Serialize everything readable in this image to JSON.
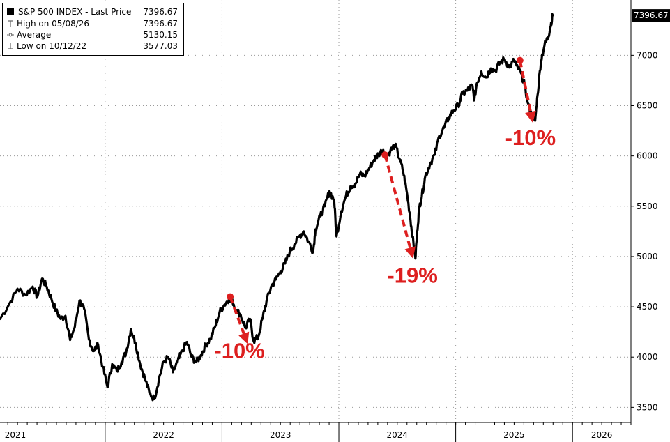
{
  "legend": {
    "title": "S&P 500 INDEX - Last Price",
    "title_value": "7396.67",
    "rows": [
      {
        "label": "High on 05/08/26",
        "value": "7396.67",
        "icon": "high-marker-icon"
      },
      {
        "label": "Average",
        "value": "5130.15",
        "icon": "average-marker-icon"
      },
      {
        "label": "Low on 10/12/22",
        "value": "3577.03",
        "icon": "low-marker-icon"
      }
    ]
  },
  "chart_data": {
    "type": "line",
    "title": "",
    "xlabel": "",
    "ylabel": "",
    "x_ticks": [
      "2021",
      "2022",
      "2023",
      "2024",
      "2025",
      "2026"
    ],
    "y_ticks": [
      3500,
      4000,
      4500,
      5000,
      5500,
      6000,
      6500,
      7000
    ],
    "ylim": [
      3350,
      7550
    ],
    "xlim": [
      2021.1,
      2026.5
    ],
    "grid": "dotted",
    "last_price_label": "7396.67",
    "line_color": "#000000",
    "annotation_color": "#dd1f1f",
    "series": [
      {
        "name": "S&P 500 INDEX - Last Price",
        "points": [
          [
            2021.1,
            4380
          ],
          [
            2021.18,
            4530
          ],
          [
            2021.25,
            4680
          ],
          [
            2021.32,
            4620
          ],
          [
            2021.38,
            4700
          ],
          [
            2021.42,
            4600
          ],
          [
            2021.46,
            4780
          ],
          [
            2021.5,
            4700
          ],
          [
            2021.54,
            4580
          ],
          [
            2021.58,
            4460
          ],
          [
            2021.62,
            4380
          ],
          [
            2021.66,
            4410
          ],
          [
            2021.7,
            4170
          ],
          [
            2021.74,
            4300
          ],
          [
            2021.78,
            4560
          ],
          [
            2021.82,
            4480
          ],
          [
            2021.86,
            4180
          ],
          [
            2021.9,
            4060
          ],
          [
            2021.94,
            4120
          ],
          [
            2021.98,
            3900
          ],
          [
            2022.02,
            3700
          ],
          [
            2022.06,
            3930
          ],
          [
            2022.1,
            3860
          ],
          [
            2022.14,
            3950
          ],
          [
            2022.18,
            4050
          ],
          [
            2022.22,
            4280
          ],
          [
            2022.26,
            4140
          ],
          [
            2022.3,
            3930
          ],
          [
            2022.34,
            3790
          ],
          [
            2022.38,
            3640
          ],
          [
            2022.42,
            3583
          ],
          [
            2022.46,
            3780
          ],
          [
            2022.5,
            3950
          ],
          [
            2022.54,
            4000
          ],
          [
            2022.58,
            3850
          ],
          [
            2022.62,
            3950
          ],
          [
            2022.66,
            4060
          ],
          [
            2022.7,
            4150
          ],
          [
            2022.74,
            4000
          ],
          [
            2022.78,
            3950
          ],
          [
            2022.82,
            4020
          ],
          [
            2022.86,
            4120
          ],
          [
            2022.9,
            4180
          ],
          [
            2022.94,
            4300
          ],
          [
            2022.98,
            4450
          ],
          [
            2023.02,
            4520
          ],
          [
            2023.06,
            4580
          ],
          [
            2023.09,
            4560
          ],
          [
            2023.12,
            4470
          ],
          [
            2023.16,
            4420
          ],
          [
            2023.2,
            4290
          ],
          [
            2023.24,
            4380
          ],
          [
            2023.27,
            4160
          ],
          [
            2023.31,
            4200
          ],
          [
            2023.35,
            4400
          ],
          [
            2023.38,
            4550
          ],
          [
            2023.42,
            4700
          ],
          [
            2023.46,
            4770
          ],
          [
            2023.5,
            4850
          ],
          [
            2023.54,
            4930
          ],
          [
            2023.58,
            5050
          ],
          [
            2023.62,
            5120
          ],
          [
            2023.66,
            5200
          ],
          [
            2023.7,
            5250
          ],
          [
            2023.74,
            5150
          ],
          [
            2023.78,
            5050
          ],
          [
            2023.8,
            5270
          ],
          [
            2023.84,
            5400
          ],
          [
            2023.88,
            5500
          ],
          [
            2023.92,
            5650
          ],
          [
            2023.96,
            5560
          ],
          [
            2023.98,
            5200
          ],
          [
            2024.02,
            5450
          ],
          [
            2024.06,
            5600
          ],
          [
            2024.1,
            5700
          ],
          [
            2024.14,
            5720
          ],
          [
            2024.18,
            5820
          ],
          [
            2024.22,
            5800
          ],
          [
            2024.26,
            5880
          ],
          [
            2024.3,
            5960
          ],
          [
            2024.34,
            6020
          ],
          [
            2024.38,
            6060
          ],
          [
            2024.4,
            5980
          ],
          [
            2024.44,
            6050
          ],
          [
            2024.48,
            6110
          ],
          [
            2024.52,
            5970
          ],
          [
            2024.55,
            5850
          ],
          [
            2024.58,
            5650
          ],
          [
            2024.61,
            5400
          ],
          [
            2024.63,
            5200
          ],
          [
            2024.655,
            4980
          ],
          [
            2024.67,
            5250
          ],
          [
            2024.69,
            5500
          ],
          [
            2024.71,
            5600
          ],
          [
            2024.74,
            5800
          ],
          [
            2024.78,
            5920
          ],
          [
            2024.82,
            6010
          ],
          [
            2024.86,
            6200
          ],
          [
            2024.9,
            6280
          ],
          [
            2024.94,
            6380
          ],
          [
            2024.98,
            6450
          ],
          [
            2025.02,
            6500
          ],
          [
            2025.06,
            6620
          ],
          [
            2025.1,
            6650
          ],
          [
            2025.14,
            6700
          ],
          [
            2025.16,
            6560
          ],
          [
            2025.18,
            6720
          ],
          [
            2025.22,
            6840
          ],
          [
            2025.26,
            6780
          ],
          [
            2025.3,
            6870
          ],
          [
            2025.34,
            6850
          ],
          [
            2025.38,
            6930
          ],
          [
            2025.42,
            6960
          ],
          [
            2025.46,
            6880
          ],
          [
            2025.5,
            6950
          ],
          [
            2025.52,
            6900
          ],
          [
            2025.56,
            6820
          ],
          [
            2025.59,
            6700
          ],
          [
            2025.62,
            6520
          ],
          [
            2025.65,
            6400
          ],
          [
            2025.68,
            6350
          ],
          [
            2025.7,
            6600
          ],
          [
            2025.73,
            6950
          ],
          [
            2025.76,
            7100
          ],
          [
            2025.79,
            7180
          ],
          [
            2025.81,
            7280
          ],
          [
            2025.83,
            7396.67
          ]
        ]
      }
    ],
    "annotations": [
      {
        "label": "-10%",
        "from": [
          2023.07,
          4600
        ],
        "to": [
          2023.22,
          4130
        ],
        "text_at": [
          2023.15,
          3990
        ]
      },
      {
        "label": "-19%",
        "from": [
          2024.395,
          6010
        ],
        "to": [
          2024.635,
          4980
        ],
        "text_at": [
          2024.63,
          4740
        ]
      },
      {
        "label": "-10%",
        "from": [
          2025.55,
          6950
        ],
        "to": [
          2025.66,
          6330
        ],
        "text_at": [
          2025.64,
          6110
        ]
      }
    ]
  }
}
